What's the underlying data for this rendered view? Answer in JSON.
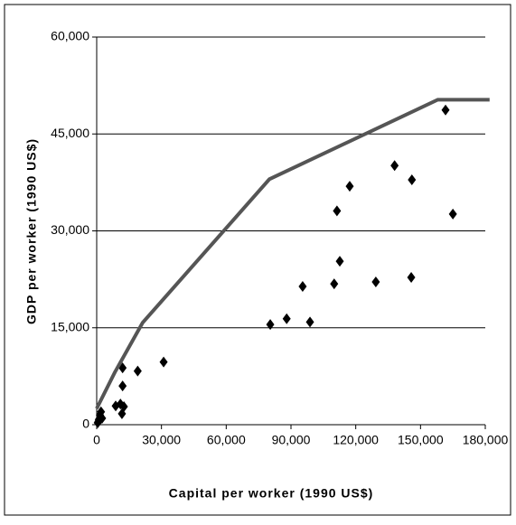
{
  "chart_data": {
    "type": "scatter",
    "xlabel": "Capital per worker (1990 US$)",
    "ylabel": "GDP per worker (1990 US$)",
    "xlim": [
      0,
      180000
    ],
    "ylim": [
      0,
      60000
    ],
    "xticks": [
      0,
      {
        "value": 30000,
        "label": "30,000"
      },
      {
        "value": 60000,
        "label": "60,000"
      },
      {
        "value": 90000,
        "label": "90,000"
      },
      {
        "value": 120000,
        "label": "120,000"
      },
      {
        "value": 150000,
        "label": "150,000"
      },
      {
        "value": 180000,
        "label": "180,000"
      }
    ],
    "yticks": [
      0,
      {
        "value": 15000,
        "label": "15,000"
      },
      {
        "value": 30000,
        "label": "30,000"
      },
      {
        "value": 45000,
        "label": "45,000"
      },
      {
        "value": 60000,
        "label": "60,000"
      }
    ],
    "grid": true,
    "series": [
      {
        "type": "scatter",
        "color": "#000000",
        "x": [
          500,
          800,
          1000,
          1500,
          2000,
          2500,
          8800,
          11000,
          11700,
          12000,
          12000,
          12600,
          19000,
          31000,
          80400,
          88000,
          95400,
          98800,
          110000,
          111300,
          112600,
          117200,
          129300,
          138000,
          145700,
          146000,
          161600,
          165000
        ],
        "values": [
          300,
          500,
          800,
          1500,
          2000,
          1000,
          2900,
          3200,
          1700,
          8800,
          6000,
          2800,
          8300,
          9700,
          15500,
          16400,
          21400,
          15900,
          21800,
          33100,
          25300,
          36900,
          22100,
          40100,
          22800,
          37900,
          48700,
          32600
        ]
      },
      {
        "type": "line",
        "color": "#555555",
        "x": [
          0,
          8400,
          21300,
          80000,
          158000,
          182000
        ],
        "values": [
          2500,
          8100,
          15800,
          38000,
          50300,
          50300
        ]
      }
    ]
  }
}
